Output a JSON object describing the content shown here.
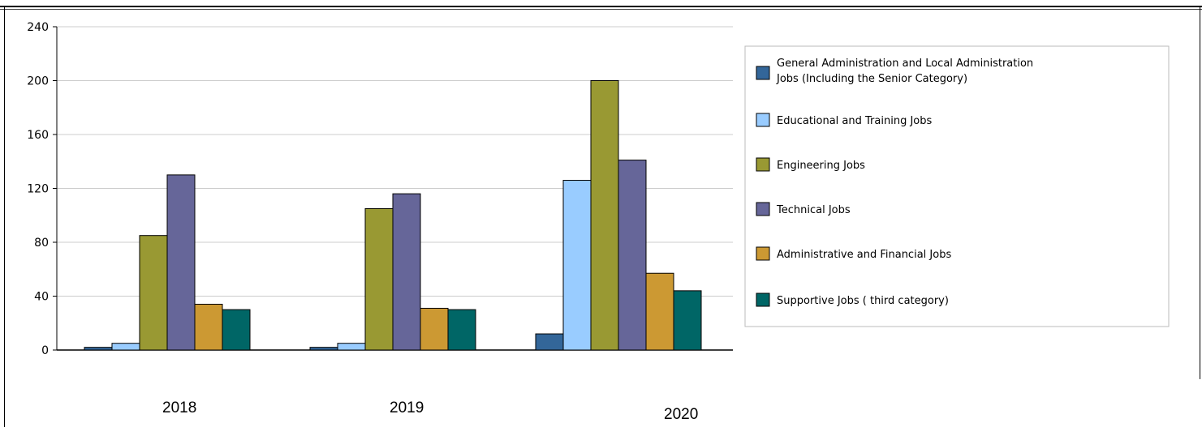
{
  "chart_data": {
    "type": "bar",
    "categories": [
      "2018",
      "2019",
      "2020"
    ],
    "ylim": [
      0,
      240
    ],
    "yticks": [
      "0",
      "40",
      "80",
      "120",
      "160",
      "200",
      "240"
    ],
    "grid": true,
    "legend_position": "right",
    "series": [
      {
        "name": "General Administration and Local Administration Jobs (Including the Senior Category)",
        "values": [
          2,
          2,
          12
        ],
        "color": "#336699"
      },
      {
        "name": "Educational and Training Jobs",
        "values": [
          5,
          5,
          126
        ],
        "color": "#99ccff"
      },
      {
        "name": "Engineering Jobs",
        "values": [
          85,
          105,
          200
        ],
        "color": "#999933"
      },
      {
        "name": "Technical Jobs",
        "values": [
          130,
          116,
          141
        ],
        "color": "#666699"
      },
      {
        "name": "Administrative and Financial Jobs",
        "values": [
          34,
          31,
          57
        ],
        "color": "#cc9933"
      },
      {
        "name": "Supportive Jobs ( third category)",
        "values": [
          30,
          30,
          44
        ],
        "color": "#006666"
      }
    ]
  }
}
